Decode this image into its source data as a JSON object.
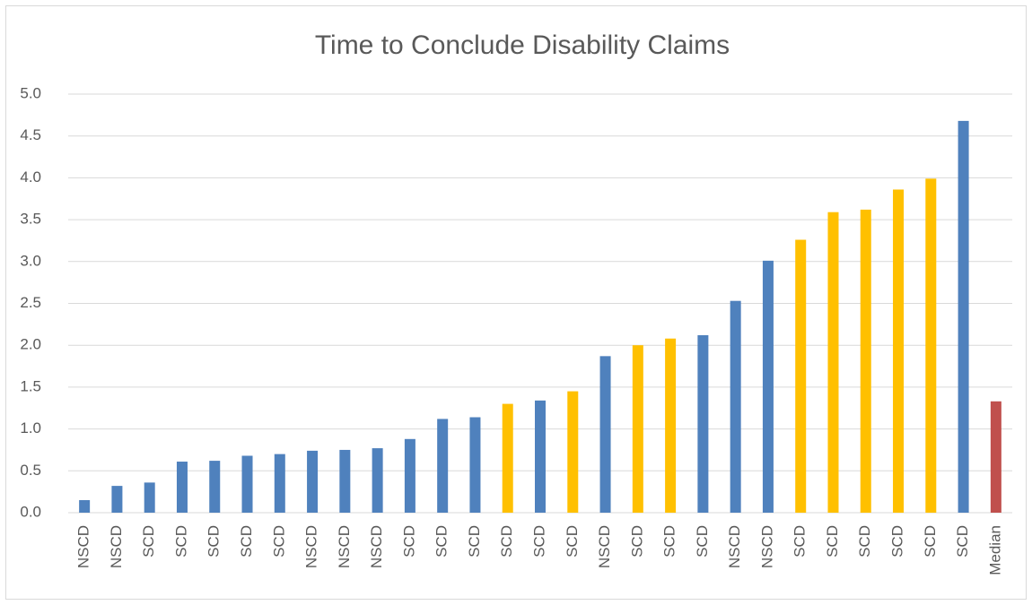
{
  "chart_data": {
    "type": "bar",
    "title": "Time to Conclude Disability Claims",
    "categories": [
      "NSCD",
      "NSCD",
      "SCD",
      "SCD",
      "SCD",
      "SCD",
      "SCD",
      "NSCD",
      "NSCD",
      "NSCD",
      "SCD",
      "SCD",
      "SCD",
      "SCD",
      "SCD",
      "SCD",
      "NSCD",
      "SCD",
      "SCD",
      "SCD",
      "NSCD",
      "NSCD",
      "SCD",
      "SCD",
      "SCD",
      "SCD",
      "SCD",
      "SCD",
      "Median"
    ],
    "values": [
      0.15,
      0.32,
      0.36,
      0.61,
      0.62,
      0.68,
      0.7,
      0.74,
      0.75,
      0.77,
      0.88,
      1.12,
      1.14,
      1.3,
      1.34,
      1.45,
      1.87,
      2.0,
      2.08,
      2.12,
      2.53,
      3.01,
      3.26,
      3.59,
      3.62,
      3.86,
      3.99,
      4.68,
      1.33
    ],
    "colors": [
      "#4f81bd",
      "#4f81bd",
      "#4f81bd",
      "#4f81bd",
      "#4f81bd",
      "#4f81bd",
      "#4f81bd",
      "#4f81bd",
      "#4f81bd",
      "#4f81bd",
      "#4f81bd",
      "#4f81bd",
      "#4f81bd",
      "#ffc000",
      "#4f81bd",
      "#ffc000",
      "#4f81bd",
      "#ffc000",
      "#ffc000",
      "#4f81bd",
      "#4f81bd",
      "#4f81bd",
      "#ffc000",
      "#ffc000",
      "#ffc000",
      "#ffc000",
      "#ffc000",
      "#4f81bd",
      "#c0504d"
    ],
    "ylim": [
      0,
      5
    ],
    "yticks": [
      {
        "value": 0,
        "label": "0.0"
      },
      {
        "value": 0.5,
        "label": "0.5"
      },
      {
        "value": 1,
        "label": "1.0"
      },
      {
        "value": 1.5,
        "label": "1.5"
      },
      {
        "value": 2,
        "label": "2.0"
      },
      {
        "value": 2.5,
        "label": "2.5"
      },
      {
        "value": 3,
        "label": "3.0"
      },
      {
        "value": 3.5,
        "label": "3.5"
      },
      {
        "value": 4,
        "label": "4.0"
      },
      {
        "value": 4.5,
        "label": "4.5"
      },
      {
        "value": 5,
        "label": "5.0"
      }
    ],
    "grid": true
  }
}
